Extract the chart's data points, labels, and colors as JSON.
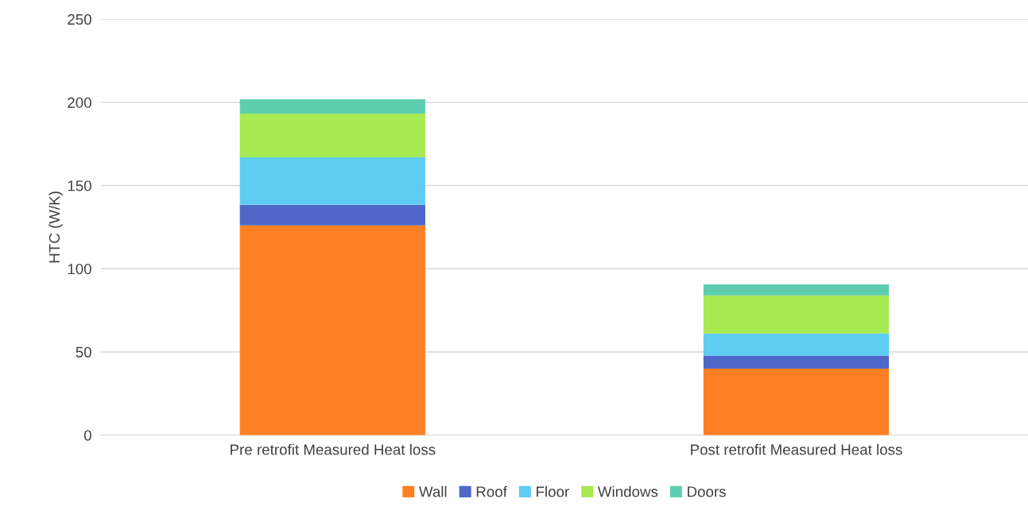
{
  "chart_data": {
    "type": "bar",
    "stacked": true,
    "ylabel": "HTC (W/K)",
    "categories": [
      "Pre retrofit Measured Heat loss",
      "Post retrofit Measured Heat loss"
    ],
    "series": [
      {
        "name": "Wall",
        "color": "#ff8022",
        "values": [
          126,
          40
        ]
      },
      {
        "name": "Roof",
        "color": "#4e67c8",
        "values": [
          12.4,
          7.7
        ]
      },
      {
        "name": "Floor",
        "color": "#5eccf3",
        "values": [
          28.6,
          13.4
        ]
      },
      {
        "name": "Windows",
        "color": "#a7ea52",
        "values": [
          26.2,
          22.9
        ]
      },
      {
        "name": "Doors",
        "color": "#5dceaf",
        "values": [
          8.6,
          6.6
        ]
      }
    ],
    "ylim": [
      0,
      250
    ],
    "yticks": [
      0,
      50,
      100,
      150,
      200,
      250
    ],
    "grid": "y",
    "legend": "bottom"
  }
}
